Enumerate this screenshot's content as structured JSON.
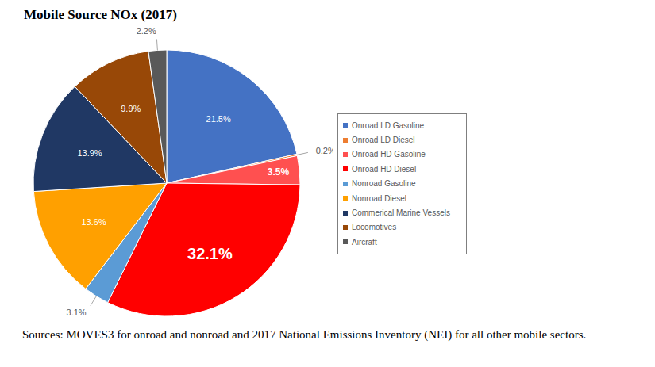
{
  "chart_data": {
    "type": "pie",
    "title": "Mobile Source NOx (2017)",
    "categories": [
      "Onroad LD Gasoline",
      "Onroad LD Diesel",
      "Onroad HD Gasoline",
      "Onroad HD Diesel",
      "Nonroad Gasoline",
      "Nonroad Diesel",
      "Commerical Marine Vessels",
      "Locomotives",
      "Aircraft"
    ],
    "values": [
      21.5,
      0.2,
      3.5,
      32.1,
      3.1,
      13.6,
      13.9,
      9.9,
      2.2
    ],
    "value_labels": [
      "21.5%",
      "0.2%",
      "3.5%",
      "32.1%",
      "3.1%",
      "13.6%",
      "13.9%",
      "9.9%",
      "2.2%"
    ],
    "colors": [
      "#4472c4",
      "#ed7d31",
      "#ff5050",
      "#ff0000",
      "#5b9bd5",
      "#ffa000",
      "#203864",
      "#984807",
      "#595959"
    ],
    "data_labels": true,
    "legend": "right",
    "source": "Sources: MOVES3 for onroad and nonroad and 2017 National Emissions Inventory (NEI) for all other mobile sectors."
  }
}
